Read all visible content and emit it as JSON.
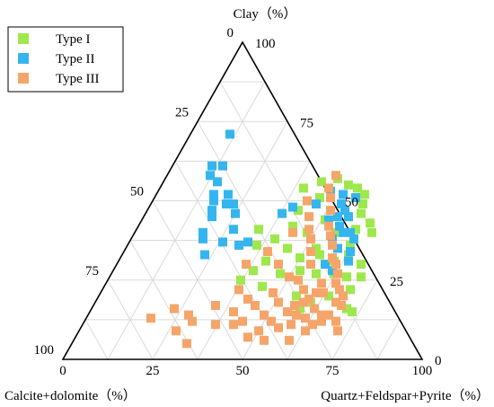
{
  "chart_data": {
    "type": "scatter",
    "subtype": "ternary",
    "axes": {
      "top": {
        "title": "Clay（%）",
        "ticks": [
          "0",
          "25",
          "50",
          "75",
          "100"
        ]
      },
      "left": {
        "title": "Calcite+dolomite（%）",
        "ticks": [
          "0",
          "25",
          "50",
          "75",
          "100"
        ]
      },
      "right": {
        "title": "Quartz+Feldspar+Pyrite（%）",
        "ticks": [
          "0",
          "25",
          "50",
          "75",
          "100"
        ]
      }
    },
    "range": [
      0,
      100
    ],
    "grid": true,
    "grid_step": 12.5,
    "legend": {
      "placement": "top-left"
    },
    "series": [
      {
        "name": "Type I",
        "color": "#9ee84d",
        "points": [
          [
            46,
            51
          ],
          [
            40,
            54
          ],
          [
            44,
            56
          ],
          [
            48,
            57
          ],
          [
            52,
            55
          ],
          [
            55,
            54
          ],
          [
            58,
            52
          ],
          [
            59,
            49
          ],
          [
            42,
            47
          ],
          [
            51,
            44
          ],
          [
            56,
            40
          ],
          [
            60,
            46
          ],
          [
            64,
            43
          ],
          [
            66,
            40
          ],
          [
            62,
            36
          ],
          [
            68,
            30
          ],
          [
            66,
            26
          ],
          [
            64,
            20
          ],
          [
            71,
            16
          ],
          [
            73,
            15
          ],
          [
            57,
            27
          ],
          [
            60,
            31
          ],
          [
            63,
            33
          ],
          [
            48,
            40
          ],
          [
            34,
            41
          ],
          [
            36,
            36
          ],
          [
            40,
            38
          ],
          [
            45,
            35
          ],
          [
            50,
            32
          ],
          [
            55,
            33
          ],
          [
            52,
            28
          ],
          [
            47,
            27
          ],
          [
            44,
            23
          ],
          [
            37,
            25
          ],
          [
            41,
            31
          ],
          [
            58,
            16
          ],
          [
            60,
            18
          ],
          [
            62,
            27
          ],
          [
            69,
            22
          ],
          [
            70,
            26
          ],
          [
            55,
            20
          ],
          [
            53,
            35
          ],
          [
            61,
            41
          ],
          [
            57,
            45
          ],
          [
            43,
            42
          ],
          [
            39,
            28
          ]
        ]
      },
      {
        "name": "Type II",
        "color": "#35b5ef",
        "points": [
          [
            11,
            71
          ],
          [
            11,
            61
          ],
          [
            12,
            58
          ],
          [
            14,
            61
          ],
          [
            16,
            52
          ],
          [
            15,
            56
          ],
          [
            20,
            52
          ],
          [
            17,
            50
          ],
          [
            21,
            49
          ],
          [
            18,
            47
          ],
          [
            19,
            45
          ],
          [
            23,
            49
          ],
          [
            25,
            46
          ],
          [
            19,
            40
          ],
          [
            20,
            38
          ],
          [
            27,
            41
          ],
          [
            26,
            37
          ],
          [
            23,
            33
          ],
          [
            31,
            36
          ],
          [
            33,
            37
          ],
          [
            38,
            46
          ],
          [
            40,
            48
          ],
          [
            46,
            49
          ],
          [
            48,
            53
          ],
          [
            52,
            52
          ],
          [
            56,
            51
          ],
          [
            53,
            49
          ],
          [
            55,
            47
          ],
          [
            57,
            45
          ],
          [
            56,
            42
          ],
          [
            58,
            40
          ],
          [
            60,
            40
          ],
          [
            62,
            38
          ],
          [
            63,
            34
          ],
          [
            56,
            38
          ],
          [
            54,
            45
          ],
          [
            52,
            44
          ],
          [
            58,
            30
          ],
          [
            61,
            28
          ],
          [
            59,
            35
          ],
          [
            64,
            31
          ]
        ]
      },
      {
        "name": "Type III",
        "color": "#f5a56a",
        "points": [
          [
            18,
            13
          ],
          [
            23,
            16
          ],
          [
            28,
            14
          ],
          [
            30,
            12
          ],
          [
            32,
            5
          ],
          [
            27,
            9
          ],
          [
            37,
            11
          ],
          [
            42,
            11
          ],
          [
            48,
            7
          ],
          [
            50,
            9
          ],
          [
            52,
            12
          ],
          [
            55,
            10
          ],
          [
            53,
            6
          ],
          [
            60,
            6
          ],
          [
            63,
            9
          ],
          [
            58,
            14
          ],
          [
            56,
            17
          ],
          [
            59,
            19
          ],
          [
            62,
            16
          ],
          [
            65,
            14
          ],
          [
            67,
            18
          ],
          [
            69,
            17
          ],
          [
            66,
            12
          ],
          [
            72,
            9
          ],
          [
            62,
            21
          ],
          [
            60,
            24
          ],
          [
            64,
            24
          ],
          [
            63,
            27
          ],
          [
            66,
            22
          ],
          [
            68,
            20
          ],
          [
            61,
            30
          ],
          [
            59,
            32
          ],
          [
            57,
            36
          ],
          [
            55,
            39
          ],
          [
            53,
            42
          ],
          [
            51,
            47
          ],
          [
            49,
            51
          ],
          [
            47,
            54
          ],
          [
            47,
            58
          ],
          [
            43,
            50
          ],
          [
            46,
            45
          ],
          [
            44,
            40
          ],
          [
            48,
            41
          ],
          [
            50,
            38
          ],
          [
            52,
            34
          ],
          [
            54,
            30
          ],
          [
            53,
            25
          ],
          [
            56,
            22
          ],
          [
            51,
            18
          ],
          [
            48,
            21
          ],
          [
            45,
            17
          ],
          [
            49,
            14
          ],
          [
            44,
            12
          ],
          [
            40,
            15
          ],
          [
            42,
            19
          ],
          [
            38,
            22
          ],
          [
            34,
            17
          ],
          [
            36,
            30
          ],
          [
            40,
            34
          ],
          [
            45,
            30
          ],
          [
            50,
            26
          ],
          [
            55,
            15
          ],
          [
            58,
            11
          ],
          [
            61,
            13
          ],
          [
            64,
            11
          ],
          [
            67,
            14
          ],
          [
            70,
            12
          ],
          [
            58,
            18
          ],
          [
            60,
            21
          ]
        ]
      }
    ]
  }
}
